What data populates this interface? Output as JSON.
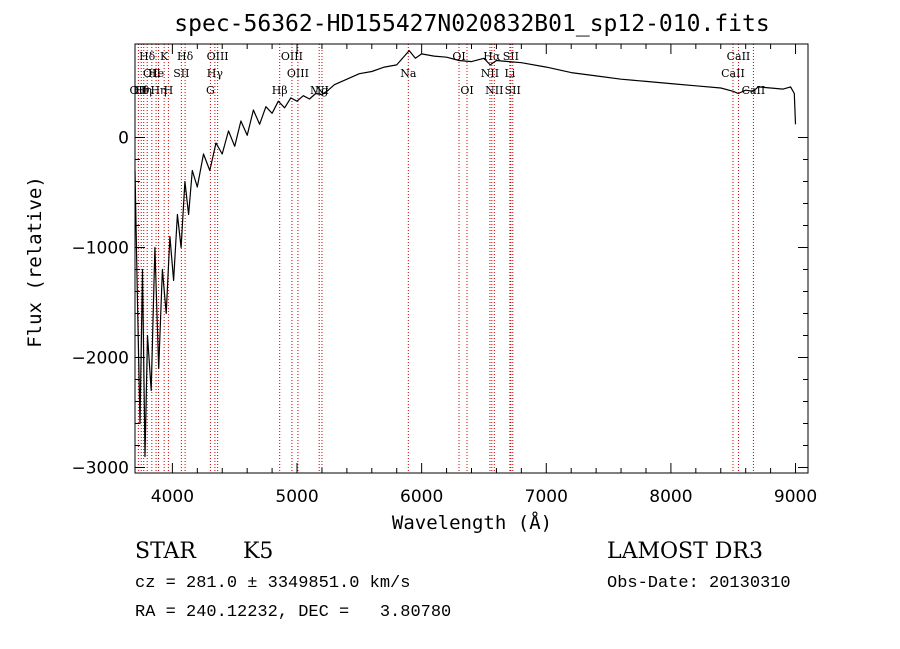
{
  "chart_data": {
    "type": "line",
    "title": "spec-56362-HD155427N020832B01_sp12-010.fits",
    "xlabel": "Wavelength (Å)",
    "ylabel": "Flux (relative)",
    "xlim": [
      3700,
      9100
    ],
    "ylim": [
      -3050,
      850
    ],
    "x_ticks": [
      4000,
      5000,
      6000,
      7000,
      8000,
      9000
    ],
    "y_ticks": [
      0,
      -1000,
      -2000,
      -3000
    ],
    "series": [
      {
        "name": "flux",
        "x": [
          3700,
          3720,
          3740,
          3760,
          3780,
          3800,
          3830,
          3860,
          3890,
          3920,
          3950,
          3980,
          4010,
          4040,
          4070,
          4100,
          4130,
          4160,
          4200,
          4250,
          4300,
          4350,
          4400,
          4450,
          4500,
          4550,
          4600,
          4650,
          4700,
          4750,
          4800,
          4850,
          4900,
          4950,
          5000,
          5050,
          5100,
          5150,
          5200,
          5250,
          5300,
          5400,
          5500,
          5600,
          5700,
          5800,
          5900,
          5950,
          6000,
          6100,
          6200,
          6300,
          6400,
          6500,
          6550,
          6600,
          6700,
          6800,
          7000,
          7200,
          7400,
          7600,
          7800,
          8000,
          8200,
          8400,
          8500,
          8540,
          8600,
          8660,
          8700,
          8800,
          8900,
          8960,
          8990,
          9000
        ],
        "y": [
          -300,
          -1500,
          -2600,
          -1200,
          -2900,
          -1800,
          -2300,
          -1000,
          -2100,
          -1200,
          -1600,
          -900,
          -1300,
          -700,
          -1000,
          -400,
          -700,
          -300,
          -450,
          -150,
          -300,
          -50,
          -150,
          60,
          -80,
          150,
          20,
          250,
          120,
          280,
          220,
          330,
          270,
          360,
          330,
          380,
          350,
          400,
          390,
          430,
          480,
          530,
          580,
          600,
          640,
          660,
          790,
          720,
          760,
          740,
          730,
          700,
          690,
          720,
          660,
          700,
          690,
          680,
          640,
          590,
          560,
          530,
          510,
          490,
          470,
          450,
          420,
          400,
          430,
          420,
          460,
          450,
          440,
          460,
          400,
          120
        ]
      }
    ],
    "lines": [
      {
        "wavelength": 3727,
        "labels": [
          "OII"
        ],
        "row": 3
      },
      {
        "wavelength": 3750,
        "labels": [
          "Hθ"
        ],
        "row": 3
      },
      {
        "wavelength": 3770,
        "labels": [
          "Hη"
        ],
        "row": 3
      },
      {
        "wavelength": 3798,
        "labels": [
          "Hδ"
        ],
        "row": 1
      },
      {
        "wavelength": 3835,
        "labels": [
          "OII"
        ],
        "row": 2
      },
      {
        "wavelength": 3869,
        "labels": [
          "He"
        ],
        "row": 2
      },
      {
        "wavelength": 3889,
        "labels": [
          "Hη"
        ],
        "row": 3
      },
      {
        "wavelength": 3934,
        "labels": [
          "K"
        ],
        "row": 1
      },
      {
        "wavelength": 3968,
        "labels": [
          "H"
        ],
        "row": 3
      },
      {
        "wavelength": 4072,
        "labels": [
          "SII"
        ],
        "row": 2
      },
      {
        "wavelength": 4102,
        "labels": [
          "Hδ"
        ],
        "row": 1
      },
      {
        "wavelength": 4305,
        "labels": [
          "G"
        ],
        "row": 3
      },
      {
        "wavelength": 4341,
        "labels": [
          "Hγ"
        ],
        "row": 2
      },
      {
        "wavelength": 4363,
        "labels": [
          "OIII"
        ],
        "row": 1
      },
      {
        "wavelength": 4861,
        "labels": [
          "Hβ"
        ],
        "row": 3
      },
      {
        "wavelength": 4959,
        "labels": [
          "OIII"
        ],
        "row": 1
      },
      {
        "wavelength": 5007,
        "labels": [
          "OIII"
        ],
        "row": 2
      },
      {
        "wavelength": 5178,
        "labels": [
          "Mg"
        ],
        "row": 3
      },
      {
        "wavelength": 5200,
        "labels": [
          "NI"
        ],
        "row": 3
      },
      {
        "wavelength": 5893,
        "labels": [
          "Na"
        ],
        "row": 2
      },
      {
        "wavelength": 6300,
        "labels": [
          "OI"
        ],
        "row": 1
      },
      {
        "wavelength": 6364,
        "labels": [
          "OI"
        ],
        "row": 3
      },
      {
        "wavelength": 6548,
        "labels": [
          "NII"
        ],
        "row": 2
      },
      {
        "wavelength": 6563,
        "labels": [
          "Hα"
        ],
        "row": 1
      },
      {
        "wavelength": 6583,
        "labels": [
          "NII"
        ],
        "row": 3
      },
      {
        "wavelength": 6708,
        "labels": [
          "Li"
        ],
        "row": 2
      },
      {
        "wavelength": 6716,
        "labels": [
          "SII"
        ],
        "row": 1
      },
      {
        "wavelength": 6731,
        "labels": [
          "SII"
        ],
        "row": 3
      },
      {
        "wavelength": 8498,
        "labels": [
          "CaII"
        ],
        "row": 2
      },
      {
        "wavelength": 8542,
        "labels": [
          "CaII"
        ],
        "row": 1
      },
      {
        "wavelength": 8662,
        "labels": [
          "CaII"
        ],
        "row": 3
      }
    ],
    "line_color": "#cc0000",
    "spectrum_color": "#000000"
  },
  "info": {
    "object_class": "STAR",
    "subclass": "K5",
    "survey": "LAMOST DR3",
    "redshift_line": "cz = 281.0 ± 3349851.0 km/s",
    "obs_date": "Obs-Date: 20130310",
    "coords_line": "RA = 240.12232, DEC =   3.80780"
  }
}
